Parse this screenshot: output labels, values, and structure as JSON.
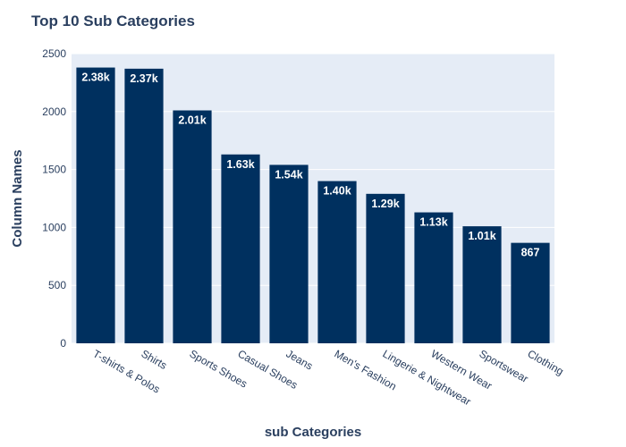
{
  "chart_data": {
    "type": "bar",
    "title": "Top 10 Sub Categories",
    "xlabel": "sub Categories",
    "ylabel": "Column Names",
    "categories": [
      "T-shirts & Polos",
      "Shirts",
      "Sports Shoes",
      "Casual Shoes",
      "Jeans",
      "Men's Fashion",
      "Lingerie & Nightwear",
      "Western Wear",
      "Sportswear",
      "Clothing"
    ],
    "values": [
      2380,
      2370,
      2010,
      1630,
      1540,
      1400,
      1290,
      1130,
      1010,
      867
    ],
    "data_labels": [
      "2.38k",
      "2.37k",
      "2.01k",
      "1.63k",
      "1.54k",
      "1.40k",
      "1.29k",
      "1.13k",
      "1.01k",
      "867"
    ],
    "ylim": [
      0,
      2500
    ],
    "yticks": [
      0,
      500,
      1000,
      1500,
      2000,
      2500
    ],
    "grid": true,
    "colors": {
      "bar": "#00305f",
      "plot_background": "#e5ecf6",
      "gridline": "#ffffff",
      "text": "#2a3f5f",
      "bar_label": "#ffffff"
    }
  }
}
